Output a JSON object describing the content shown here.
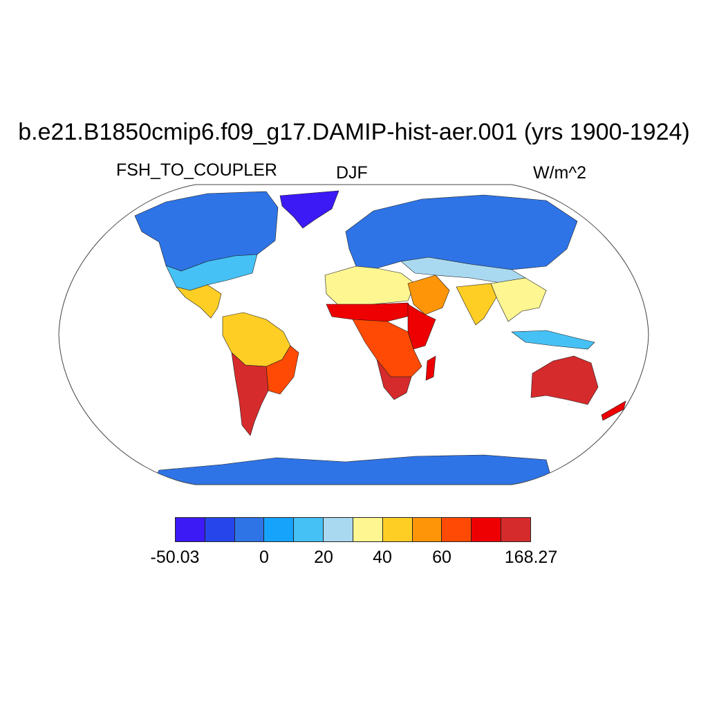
{
  "title": "b.e21.B1850cmip6.f09_g17.DAMIP-hist-aer.001 (yrs 1900-1924)",
  "variable": "FSH_TO_COUPLER",
  "season": "DJF",
  "units": "W/m^2",
  "projection": "Robinson",
  "colorbar": {
    "colors": [
      "#3c1af5",
      "#2646ec",
      "#2f74e6",
      "#16a3fb",
      "#46c1f5",
      "#a9d9f0",
      "#fef690",
      "#fece25",
      "#fe9508",
      "#fe4a04",
      "#ee0002",
      "#d62b2c"
    ],
    "tick_labels": [
      "-50.03",
      "0",
      "20",
      "40",
      "60",
      "168.27"
    ]
  },
  "regions": [
    {
      "name": "greenland",
      "color": "#3c1af5"
    },
    {
      "name": "canada-alaska",
      "color": "#2f74e6"
    },
    {
      "name": "northern-eurasia",
      "color": "#2f74e6"
    },
    {
      "name": "antarctica",
      "color": "#2f74e6"
    },
    {
      "name": "us-midlatitudes",
      "color": "#46c1f5"
    },
    {
      "name": "central-asia",
      "color": "#a9d9f0"
    },
    {
      "name": "mexico",
      "color": "#fece25"
    },
    {
      "name": "amazon",
      "color": "#fece25"
    },
    {
      "name": "brazil-east",
      "color": "#fe4a04"
    },
    {
      "name": "southern-south-america",
      "color": "#d62b2c"
    },
    {
      "name": "sahara",
      "color": "#fef690"
    },
    {
      "name": "sahel",
      "color": "#ee0002"
    },
    {
      "name": "east-africa",
      "color": "#ee0002"
    },
    {
      "name": "southern-africa",
      "color": "#fe4a04"
    },
    {
      "name": "south-africa",
      "color": "#d62b2c"
    },
    {
      "name": "madagascar",
      "color": "#ee0002"
    },
    {
      "name": "arabia",
      "color": "#fe9508"
    },
    {
      "name": "india",
      "color": "#fece25"
    },
    {
      "name": "southeast-asia",
      "color": "#fef690"
    },
    {
      "name": "indonesia",
      "color": "#46c1f5"
    },
    {
      "name": "australia",
      "color": "#d62b2c"
    },
    {
      "name": "new-zealand",
      "color": "#ee0002"
    }
  ]
}
